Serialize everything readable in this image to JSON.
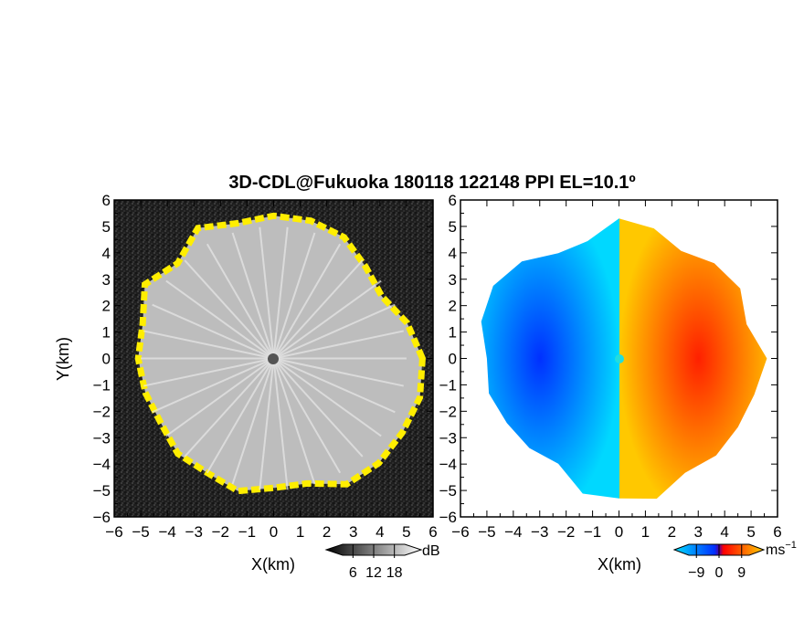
{
  "title": "3D-CDL@Fukuoka 180118 122148 PPI EL=10.1º",
  "chart_data": [
    {
      "type": "heatmap",
      "panel": "left",
      "quantity": "SNR",
      "xlabel": "X(km)",
      "ylabel": "Y(km)",
      "xlim": [
        -6,
        6
      ],
      "ylim": [
        -6,
        6
      ],
      "xticks": [
        -6,
        -5,
        -4,
        -3,
        -2,
        -1,
        0,
        1,
        2,
        3,
        4,
        5,
        6
      ],
      "yticks": [
        -6,
        -5,
        -4,
        -3,
        -2,
        -1,
        0,
        1,
        2,
        3,
        4,
        5,
        6
      ],
      "xtick_labels": [
        "−6",
        "−5",
        "−4",
        "−3",
        "−2",
        "−1",
        "0",
        "1",
        "2",
        "3",
        "4",
        "5",
        "6"
      ],
      "ytick_labels": [
        "−6",
        "−5",
        "−4",
        "−3",
        "−2",
        "−1",
        "0",
        "1",
        "2",
        "3",
        "4",
        "5",
        "6"
      ],
      "colorbar": {
        "ticks": [
          6,
          12,
          18
        ],
        "tick_labels": [
          "6",
          "12",
          "18"
        ],
        "unit": "dB",
        "colors": [
          "#000000",
          "#ffffff"
        ]
      },
      "echo_edge_color": "#ffee00",
      "echo_boundary_angles_deg": [
        0,
        15,
        30,
        45,
        60,
        75,
        90,
        105,
        120,
        135,
        150,
        165,
        180,
        195,
        210,
        225,
        240,
        255,
        270,
        285,
        300,
        315,
        330,
        345
      ],
      "echo_boundary_radius_km": [
        5.6,
        5.2,
        4.7,
        4.9,
        5.3,
        5.4,
        5.4,
        5.3,
        5.7,
        5.1,
        5.6,
        5.1,
        5.1,
        5.0,
        4.9,
        5.1,
        5.0,
        5.2,
        4.9,
        4.9,
        5.5,
        5.6,
        5.6,
        5.7
      ]
    },
    {
      "type": "heatmap",
      "panel": "right",
      "quantity": "Doppler velocity",
      "xlabel": "X(km)",
      "xlim": [
        -6,
        6
      ],
      "ylim": [
        -6,
        6
      ],
      "xticks": [
        -6,
        -5,
        -4,
        -3,
        -2,
        -1,
        0,
        1,
        2,
        3,
        4,
        5,
        6
      ],
      "yticks": [
        -6,
        -5,
        -4,
        -3,
        -2,
        -1,
        0,
        1,
        2,
        3,
        4,
        5,
        6
      ],
      "xtick_labels": [
        "−6",
        "−5",
        "−4",
        "−3",
        "−2",
        "−1",
        "0",
        "1",
        "2",
        "3",
        "4",
        "5",
        "6"
      ],
      "ytick_labels": [
        "−6",
        "−5",
        "−4",
        "−3",
        "−2",
        "−1",
        "0",
        "1",
        "2",
        "3",
        "4",
        "5",
        "6"
      ],
      "colorbar": {
        "ticks": [
          -9,
          0,
          9
        ],
        "tick_labels": [
          "−9",
          "0",
          "9"
        ],
        "unit": "ms",
        "unit_exponent": "−1",
        "colors": [
          "#00e0ff",
          "#0030ff",
          "#ff0000",
          "#ffd000"
        ]
      },
      "echo_boundary_angles_deg": [
        0,
        15,
        30,
        45,
        60,
        75,
        90,
        105,
        120,
        135,
        150,
        165,
        180,
        195,
        210,
        225,
        240,
        255,
        270,
        285,
        300,
        315,
        330,
        345
      ],
      "echo_boundary_radius_km": [
        5.6,
        5.0,
        5.3,
        5.1,
        4.7,
        5.1,
        5.3,
        4.6,
        4.6,
        5.2,
        5.5,
        5.4,
        5.0,
        5.1,
        4.9,
        4.8,
        4.6,
        5.3,
        5.3,
        5.5,
        5.0,
        5.2,
        5.2,
        5.3
      ]
    }
  ]
}
